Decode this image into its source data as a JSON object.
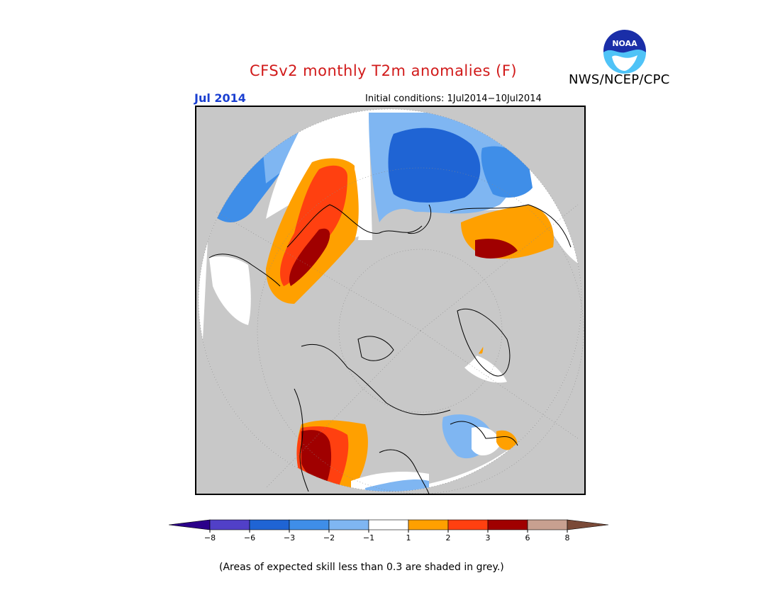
{
  "header": {
    "title": "CFSv2 monthly T2m anomalies (F)",
    "agency": "NWS/NCEP/CPC",
    "logo_text": "NOAA",
    "target_month": "Jul 2014",
    "initial_conditions": "Initial conditions: 1Jul2014−10Jul2014"
  },
  "map": {
    "projection": "north-polar-stereographic",
    "land_color": "#c8c8c8",
    "outline_color": "#000000"
  },
  "legend": {
    "tick_labels": [
      "−8",
      "−6",
      "−3",
      "−2",
      "−1",
      "1",
      "2",
      "3",
      "6",
      "8"
    ],
    "bins": [
      {
        "color": "#2b008a",
        "range": "< -8"
      },
      {
        "color": "#5140c8",
        "range": "-8 to -6"
      },
      {
        "color": "#1f64d4",
        "range": "-6 to -3"
      },
      {
        "color": "#3f8ee8",
        "range": "-3 to -2"
      },
      {
        "color": "#7fb6f2",
        "range": "-2 to -1"
      },
      {
        "color": "#ffffff",
        "range": "-1 to 1"
      },
      {
        "color": "#ffa000",
        "range": "1 to 2"
      },
      {
        "color": "#ff4010",
        "range": "2 to 3"
      },
      {
        "color": "#a00000",
        "range": "3 to 6"
      },
      {
        "color": "#c8a090",
        "range": "6 to 8"
      },
      {
        "color": "#7a4a38",
        "range": "> 8"
      }
    ]
  },
  "footnote": "(Areas of expected skill less than 0.3 are shaded in grey.)"
}
